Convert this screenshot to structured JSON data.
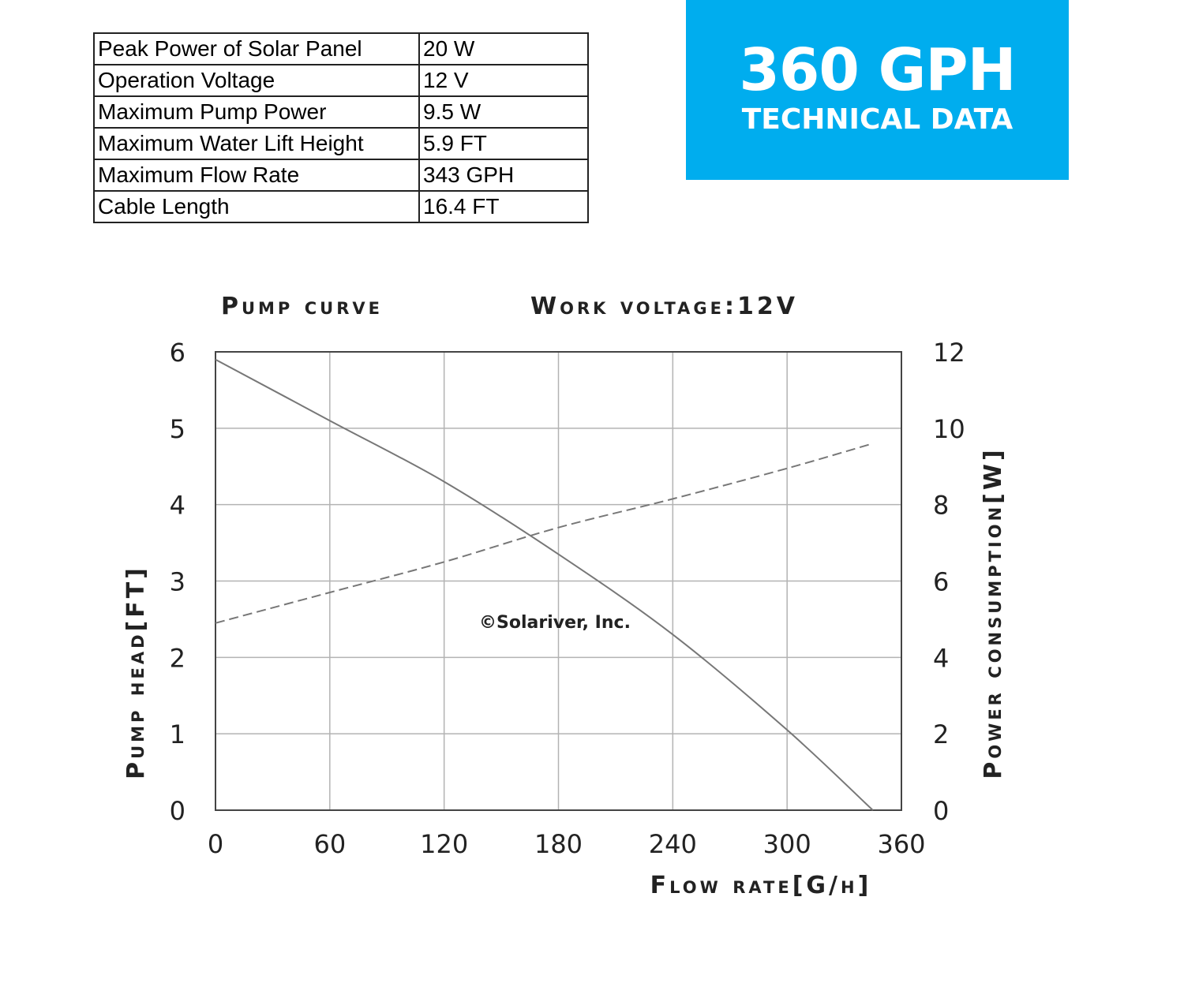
{
  "banner": {
    "title": "360 GPH",
    "subtitle": "TECHNICAL DATA"
  },
  "specs": [
    {
      "label": "Peak Power of Solar Panel",
      "value": "20 W"
    },
    {
      "label": "Operation Voltage",
      "value": "12 V"
    },
    {
      "label": "Maximum Pump Power",
      "value": "9.5 W"
    },
    {
      "label": "Maximum Water Lift Height",
      "value": "5.9 FT"
    },
    {
      "label": "Maximum Flow Rate",
      "value": "343 GPH"
    },
    {
      "label": "Cable Length",
      "value": "16.4 FT"
    }
  ],
  "watermark": "©Solariver, Inc.",
  "colors": {
    "banner": "#00adee",
    "grid": "#b3b3b3",
    "curve": "#777777"
  },
  "chart_data": {
    "type": "line",
    "title": "Pump curve",
    "subtitle": "Work voltage:12V",
    "xlabel": "Flow rate[G/h]",
    "ylabel": "Pump head[FT]",
    "y2label": "Power consumption[W]",
    "xlim": [
      0,
      360
    ],
    "ylim": [
      0,
      6
    ],
    "y2lim": [
      0,
      12
    ],
    "xticks": [
      0,
      60,
      120,
      180,
      240,
      300,
      360
    ],
    "yticks": [
      0,
      1,
      2,
      3,
      4,
      5,
      6
    ],
    "y2ticks": [
      0,
      2,
      4,
      6,
      8,
      10,
      12
    ],
    "grid": true,
    "series": [
      {
        "axis": "left",
        "style": "solid",
        "x": [
          0,
          60,
          120,
          180,
          240,
          300,
          345
        ],
        "y": [
          5.9,
          5.1,
          4.3,
          3.35,
          2.3,
          1.05,
          0
        ]
      },
      {
        "axis": "right",
        "style": "dashed",
        "x": [
          0,
          60,
          120,
          180,
          240,
          300,
          345
        ],
        "y": [
          4.9,
          5.7,
          6.5,
          7.4,
          8.15,
          8.95,
          9.6
        ]
      }
    ]
  }
}
